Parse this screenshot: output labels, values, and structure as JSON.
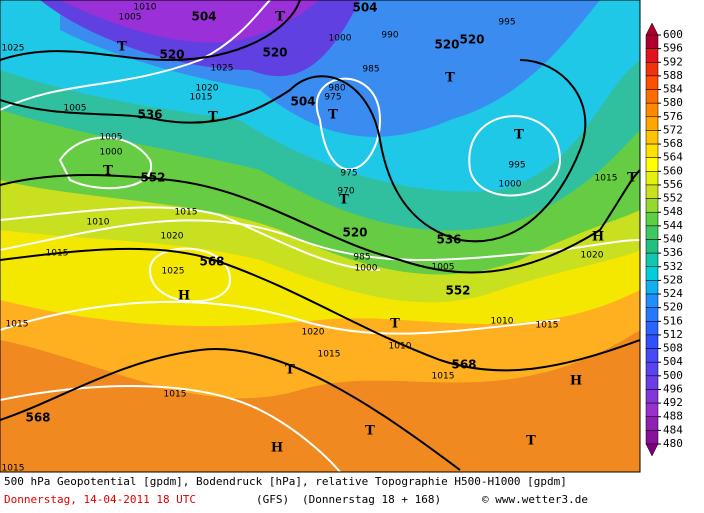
{
  "colorbar": {
    "labels": [
      600,
      596,
      592,
      588,
      584,
      580,
      576,
      572,
      568,
      564,
      560,
      556,
      552,
      548,
      544,
      540,
      536,
      532,
      528,
      524,
      520,
      516,
      512,
      508,
      504,
      500,
      496,
      492,
      488,
      484,
      480
    ]
  },
  "map": {
    "geopotential_labels": [
      "504",
      "504",
      "520",
      "520",
      "520",
      "520",
      "536",
      "504",
      "552",
      "520",
      "536",
      "568",
      "552",
      "568",
      "568"
    ],
    "pressure_systems": [
      "T",
      "T",
      "T",
      "T",
      "T",
      "T",
      "T",
      "T",
      "T",
      "H",
      "H",
      "T",
      "T",
      "H",
      "T",
      "T",
      "H"
    ],
    "isobar_labels": [
      "1005",
      "1010",
      "1000",
      "990",
      "995",
      "1025",
      "1020",
      "1015",
      "1005",
      "985",
      "980",
      "975",
      "1005",
      "1000",
      "995",
      "1000",
      "1015",
      "975",
      "970",
      "1010",
      "1015",
      "1020",
      "1015",
      "1025",
      "1000",
      "985",
      "1005",
      "1020",
      "1015",
      "1020",
      "1010",
      "1015",
      "1010",
      "1015",
      "1015",
      "1015",
      "1015",
      "1025"
    ]
  },
  "footer": {
    "description": "500 hPa Geopotential [gpdm], Bodendruck [hPa], relative Topographie H500-H1000 [gpdm]",
    "date": "Donnerstag, 14-04-2011  18 UTC",
    "model": "(GFS)",
    "run": "(Donnerstag 18 + 168)",
    "credit": "© www.wetter3.de"
  }
}
